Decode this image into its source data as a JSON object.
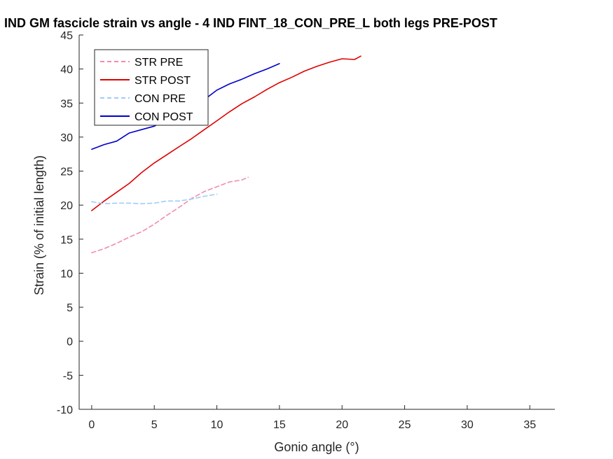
{
  "chart_data": {
    "type": "line",
    "title": "IND GM fascicle strain vs angle - 4 IND FINT_18_CON_PRE_L both legs PRE-POST",
    "xlabel": "Gonio angle (°)",
    "ylabel": "Strain (% of initial length)",
    "xlim": [
      -1,
      37
    ],
    "ylim": [
      -10,
      45
    ],
    "xticks": [
      0,
      5,
      10,
      15,
      20,
      25,
      30,
      35
    ],
    "yticks": [
      -10,
      -5,
      0,
      5,
      10,
      15,
      20,
      25,
      30,
      35,
      40,
      45
    ],
    "xtick_labels": [
      "0",
      "5",
      "10",
      "15",
      "20",
      "25",
      "30",
      "35"
    ],
    "ytick_labels": [
      "-10",
      "-5",
      "0",
      "5",
      "10",
      "15",
      "20",
      "25",
      "30",
      "35",
      "40",
      "45"
    ],
    "grid": false,
    "legend_position": "top-left",
    "series": [
      {
        "name": "STR PRE",
        "color": "#f08cb4",
        "style": "dashed",
        "x": [
          0,
          1,
          2,
          3,
          4,
          5,
          6,
          7,
          8,
          9,
          10,
          11,
          12,
          12.5
        ],
        "y": [
          13.0,
          13.6,
          14.4,
          15.3,
          16.1,
          17.2,
          18.5,
          19.7,
          21.0,
          22.0,
          22.7,
          23.4,
          23.7,
          24.1
        ]
      },
      {
        "name": "STR POST",
        "color": "#e00000",
        "style": "solid",
        "x": [
          0,
          1,
          2,
          3,
          4,
          5,
          6,
          7,
          8,
          9,
          10,
          11,
          12,
          13,
          14,
          15,
          16,
          17,
          18,
          19,
          20,
          21,
          21.5
        ],
        "y": [
          19.2,
          20.6,
          21.9,
          23.2,
          24.8,
          26.2,
          27.4,
          28.6,
          29.8,
          31.1,
          32.4,
          33.7,
          34.9,
          35.9,
          37.0,
          38.0,
          38.8,
          39.7,
          40.4,
          41.0,
          41.5,
          41.4,
          41.9
        ]
      },
      {
        "name": "CON PRE",
        "color": "#a0cdf5",
        "style": "dashed",
        "x": [
          0,
          1,
          2,
          3,
          4,
          5,
          6,
          7,
          8,
          9,
          10
        ],
        "y": [
          20.5,
          20.2,
          20.3,
          20.3,
          20.2,
          20.3,
          20.6,
          20.6,
          20.9,
          21.3,
          21.6
        ]
      },
      {
        "name": "CON POST",
        "color": "#0000c8",
        "style": "solid",
        "x": [
          0,
          1,
          2,
          3,
          4,
          5,
          6,
          7,
          8,
          9,
          10,
          11,
          12,
          13,
          14,
          15
        ],
        "y": [
          28.2,
          28.9,
          29.4,
          30.6,
          31.1,
          31.6,
          32.5,
          33.6,
          34.6,
          35.5,
          36.9,
          37.8,
          38.5,
          39.3,
          40.0,
          40.8
        ]
      }
    ]
  }
}
